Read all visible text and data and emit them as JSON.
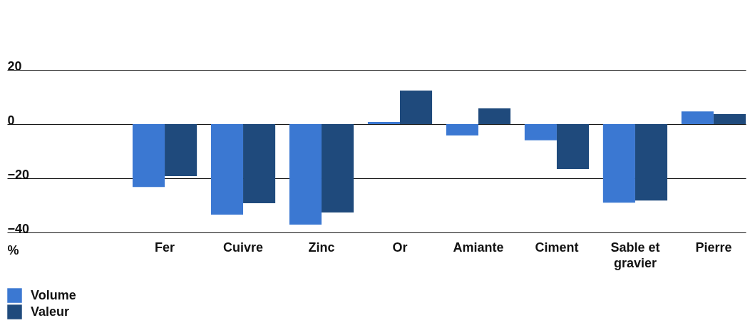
{
  "chart_data": {
    "type": "bar",
    "ylabel": "%",
    "categories": [
      "Fer",
      "Cuivre",
      "Zinc",
      "Or",
      "Amiante",
      "Ciment",
      "Sable et gravier",
      "Pierre"
    ],
    "series": [
      {
        "name": "Volume",
        "color": "#3b78d2",
        "values": [
          -23.2,
          -33.4,
          -37.1,
          0.8,
          -4.2,
          -6,
          -29,
          4.7
        ]
      },
      {
        "name": "Valeur",
        "color": "#1f4a7c",
        "values": [
          -19.2,
          -29.2,
          -32.6,
          12.4,
          5.8,
          -16.6,
          -28.2,
          3.7
        ]
      }
    ],
    "ylim": [
      -40,
      20
    ],
    "yticks": [
      20,
      0,
      {
        "value": -20,
        "label": "−20"
      },
      {
        "value": -40,
        "label": "−40"
      }
    ],
    "grid": "y",
    "legend": "bottom left"
  }
}
